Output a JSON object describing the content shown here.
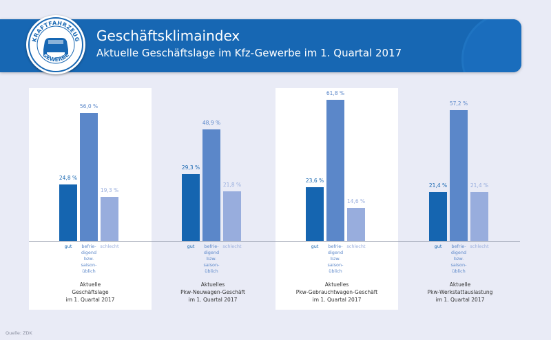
{
  "header": {
    "title": "Geschäftsklimaindex",
    "subtitle": "Aktuelle Geschäftslage im Kfz-Gewerbe im 1. Quartal 2017",
    "logo_text_top": "KRAFTFAHRZEUG",
    "logo_text_bottom": "GEWERBE"
  },
  "source": "Quelle: ZDK",
  "colors": {
    "gut": "#1565b0",
    "befriedigend": "#5b87c9",
    "schlecht": "#98addd",
    "header": "#1767b3"
  },
  "chart_data": {
    "type": "bar",
    "ylim": [
      0,
      65
    ],
    "category_labels": {
      "gut": "gut",
      "befriedigend": [
        "befrie-",
        "digend",
        "bzw.",
        "saison-",
        "üblich"
      ],
      "schlecht": "schlecht"
    },
    "groups": [
      {
        "caption": [
          "Aktuelle",
          "Geschäftslage",
          "im 1. Quartal 2017"
        ],
        "values": [
          24.8,
          56.0,
          19.3
        ],
        "labels": [
          "24,8 %",
          "56,0 %",
          "19,3 %"
        ]
      },
      {
        "caption": [
          "Aktuelles",
          "Pkw-Neuwagen-Geschäft",
          "im 1. Quartal 2017"
        ],
        "values": [
          29.3,
          48.9,
          21.8
        ],
        "labels": [
          "29,3 %",
          "48,9 %",
          "21,8 %"
        ]
      },
      {
        "caption": [
          "Aktuelles",
          "Pkw-Gebrauchtwagen-Geschäft",
          "im 1. Quartal 2017"
        ],
        "values": [
          23.6,
          61.8,
          14.6
        ],
        "labels": [
          "23,6 %",
          "61,8 %",
          "14,6 %"
        ]
      },
      {
        "caption": [
          "Aktuelle",
          "Pkw-Werkstattauslastung",
          "im 1. Quartal 2017"
        ],
        "values": [
          21.4,
          57.2,
          21.4
        ],
        "labels": [
          "21,4 %",
          "57,2 %",
          "21,4 %"
        ]
      }
    ]
  }
}
